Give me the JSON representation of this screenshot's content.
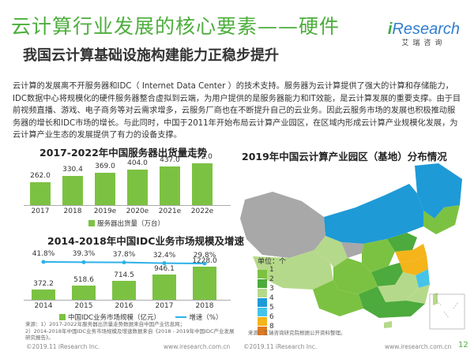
{
  "header": {
    "title": "云计算行业发展的核心要素——硬件",
    "subtitle": "我国云计算基础设施构建能力正稳步提升",
    "logo_brand_i": "i",
    "logo_brand_rest": "Research",
    "logo_cn": "艾瑞咨询"
  },
  "body_text": "云计算的发展离不开服务器和IDC（ Internet Data Center ）的技术支持。服务器为云计算提供了强大的计算和存储能力，IDC数据中心将规模化的硬件服务器整合虚拟到云端，为用户提供的是服务器能力和IT效能，是云计算发展的重要支撑。由于目前视频直播、游戏、电子商务等对云需求增多，云服务厂商也在不断提升自己的云业务。因此云服务市场的发展也积极推动服务器的增长和IDC市场的增长。与此同时，中国于2011年开始布局云计算产业园区，在区域内形成云计算产业规模化发展，为云计算产业生态的发展提供了有力的设备支撑。",
  "chart_data": [
    {
      "type": "bar",
      "title": "2017-2022年中国服务器出货量走势",
      "categories": [
        "2017",
        "2018",
        "2019e",
        "2020e",
        "2021e",
        "2022e"
      ],
      "series": [
        {
          "name": "服务器出货量（万台）",
          "values": [
            262.0,
            330.4,
            369.0,
            404.0,
            437.0,
            472.0
          ]
        }
      ],
      "value_labels": [
        "262.0",
        "330.4",
        "369.0",
        "404.0",
        "437.0",
        "472.0"
      ],
      "ylim": [
        0,
        520
      ]
    },
    {
      "type": "bar",
      "title": "2014-2018年中国IDC业务市场规模及增速",
      "categories": [
        "2014",
        "2015",
        "2016",
        "2017",
        "2018"
      ],
      "series": [
        {
          "name": "中国IDC业务市场规模（亿元）",
          "type": "bar",
          "values": [
            372.2,
            518.6,
            714.5,
            946.1,
            1228.0
          ]
        },
        {
          "name": "增速（%）",
          "type": "line",
          "values": [
            41.8,
            39.3,
            37.8,
            32.4,
            29.8
          ]
        }
      ],
      "value_labels": [
        "372.2",
        "518.6",
        "714.5",
        "946.1",
        "1228.0"
      ],
      "pct_labels": [
        "41.8%",
        "39.3%",
        "37.8%",
        "32.4%",
        "29.8%"
      ],
      "ylim": [
        0,
        1400
      ]
    },
    {
      "type": "map",
      "title": "2019年中国云计算产业园区（基地）分布情况",
      "legend_title": "单位：个",
      "levels": [
        "1",
        "2",
        "3",
        "4",
        "5",
        "6",
        "8"
      ],
      "colors": [
        "#7cc242",
        "#4daa3c",
        "#b5d98a",
        "#1e9ad6",
        "#45c4e8",
        "#f4b41a",
        "#e07a1f"
      ]
    }
  ],
  "sources": {
    "left": "来源：1）2017-2022年服务器出货量走势数据来自中国产业信息网；\n2）2014-2018年中国IDC业务市场规模及增速数据来自《2018 - 2019年中国IDC产业发展研究报告》。",
    "right": "来源：艾瑞咨询研究院根据公开资料整理。"
  },
  "footer": {
    "left_copyright": "©2019.11 iResearch Inc.",
    "left_url": "www.iresearch.com.cn",
    "right_copyright": "©2019.11 iResearch Inc.",
    "right_url": "www.iresearch.com.cn",
    "page": "12"
  }
}
